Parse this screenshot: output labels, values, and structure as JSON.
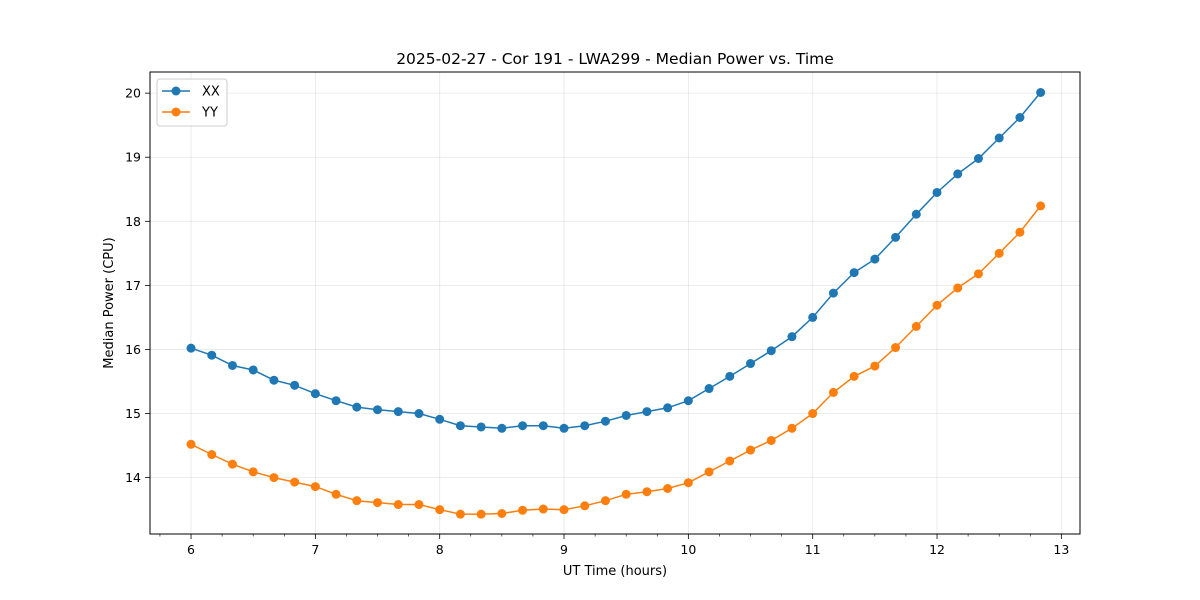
{
  "chart_data": {
    "type": "line",
    "title": "2025-02-27 - Cor 191 - LWA299 - Median Power vs. Time",
    "xlabel": "UT Time (hours)",
    "ylabel": "Median Power (CPU)",
    "xlim": [
      5.67,
      13.15
    ],
    "ylim": [
      13.12,
      20.33
    ],
    "xticks": [
      6,
      7,
      8,
      9,
      10,
      11,
      12,
      13
    ],
    "yticks": [
      14,
      15,
      16,
      17,
      18,
      19,
      20
    ],
    "grid": true,
    "legend_position": "top-left",
    "x": [
      6.0,
      6.1667,
      6.3333,
      6.5,
      6.6667,
      6.8333,
      7.0,
      7.1667,
      7.3333,
      7.5,
      7.6667,
      7.8333,
      8.0,
      8.1667,
      8.3333,
      8.5,
      8.6667,
      8.8333,
      9.0,
      9.1667,
      9.3333,
      9.5,
      9.6667,
      9.8333,
      10.0,
      10.1667,
      10.3333,
      10.5,
      10.6667,
      10.8333,
      11.0,
      11.1667,
      11.3333,
      11.5,
      11.6667,
      11.8333,
      12.0,
      12.1667,
      12.3333,
      12.5,
      12.6667,
      12.8333
    ],
    "series": [
      {
        "name": "XX",
        "color": "#1f77b4",
        "values": [
          16.02,
          15.91,
          15.75,
          15.68,
          15.52,
          15.44,
          15.31,
          15.2,
          15.1,
          15.06,
          15.03,
          15.0,
          14.91,
          14.81,
          14.79,
          14.77,
          14.81,
          14.81,
          14.77,
          14.81,
          14.88,
          14.97,
          15.03,
          15.09,
          15.2,
          15.39,
          15.58,
          15.78,
          15.98,
          16.2,
          16.5,
          16.88,
          17.2,
          17.41,
          17.75,
          18.11,
          18.45,
          18.74,
          18.98,
          19.3,
          19.62,
          20.01
        ]
      },
      {
        "name": "YY",
        "color": "#ff7f0e",
        "values": [
          14.52,
          14.36,
          14.21,
          14.09,
          14.0,
          13.93,
          13.86,
          13.74,
          13.64,
          13.61,
          13.58,
          13.58,
          13.5,
          13.43,
          13.43,
          13.44,
          13.49,
          13.51,
          13.5,
          13.56,
          13.64,
          13.74,
          13.78,
          13.83,
          13.92,
          14.09,
          14.26,
          14.43,
          14.58,
          14.77,
          15.0,
          15.33,
          15.58,
          15.74,
          16.03,
          16.36,
          16.69,
          16.96,
          17.18,
          17.5,
          17.83,
          18.24
        ]
      }
    ]
  }
}
